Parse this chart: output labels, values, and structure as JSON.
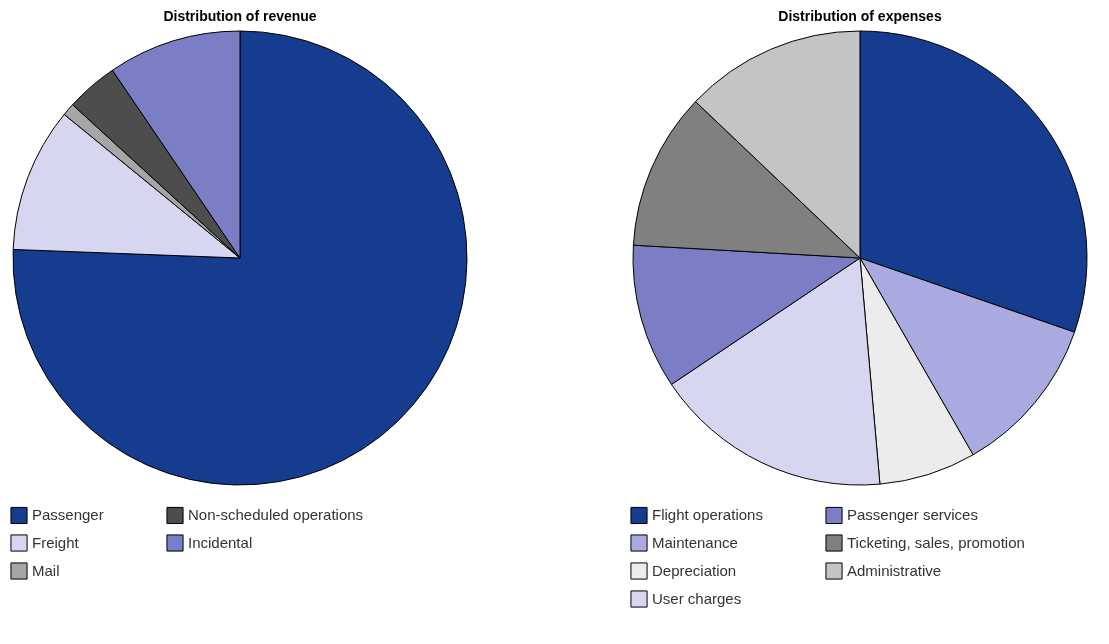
{
  "chart_data": [
    {
      "type": "pie",
      "title": "Distribution of revenue",
      "categories": [
        "Passenger",
        "Freight",
        "Mail",
        "Non-scheduled operations",
        "Incidental"
      ],
      "values": [
        75.6,
        10.3,
        0.9,
        3.7,
        9.5
      ],
      "colors": [
        "#163c8f",
        "#d6d6f0",
        "#a6a6a6",
        "#4d4d4d",
        "#7b7ec4"
      ],
      "legend": "bottom"
    },
    {
      "type": "pie",
      "title": "Distribution of expenses",
      "categories": [
        "Flight operations",
        "Maintenance",
        "Depreciation",
        "User charges",
        "Passenger services",
        "Ticketing, sales, promotion",
        "Administrative"
      ],
      "values": [
        30.3,
        11.4,
        6.9,
        17.0,
        10.3,
        11.2,
        12.9
      ],
      "colors": [
        "#163c8f",
        "#a9aadf",
        "#ececec",
        "#d6d6f0",
        "#7b7ec4",
        "#7f807f",
        "#c3c4c3"
      ],
      "legend": "bottom"
    }
  ]
}
